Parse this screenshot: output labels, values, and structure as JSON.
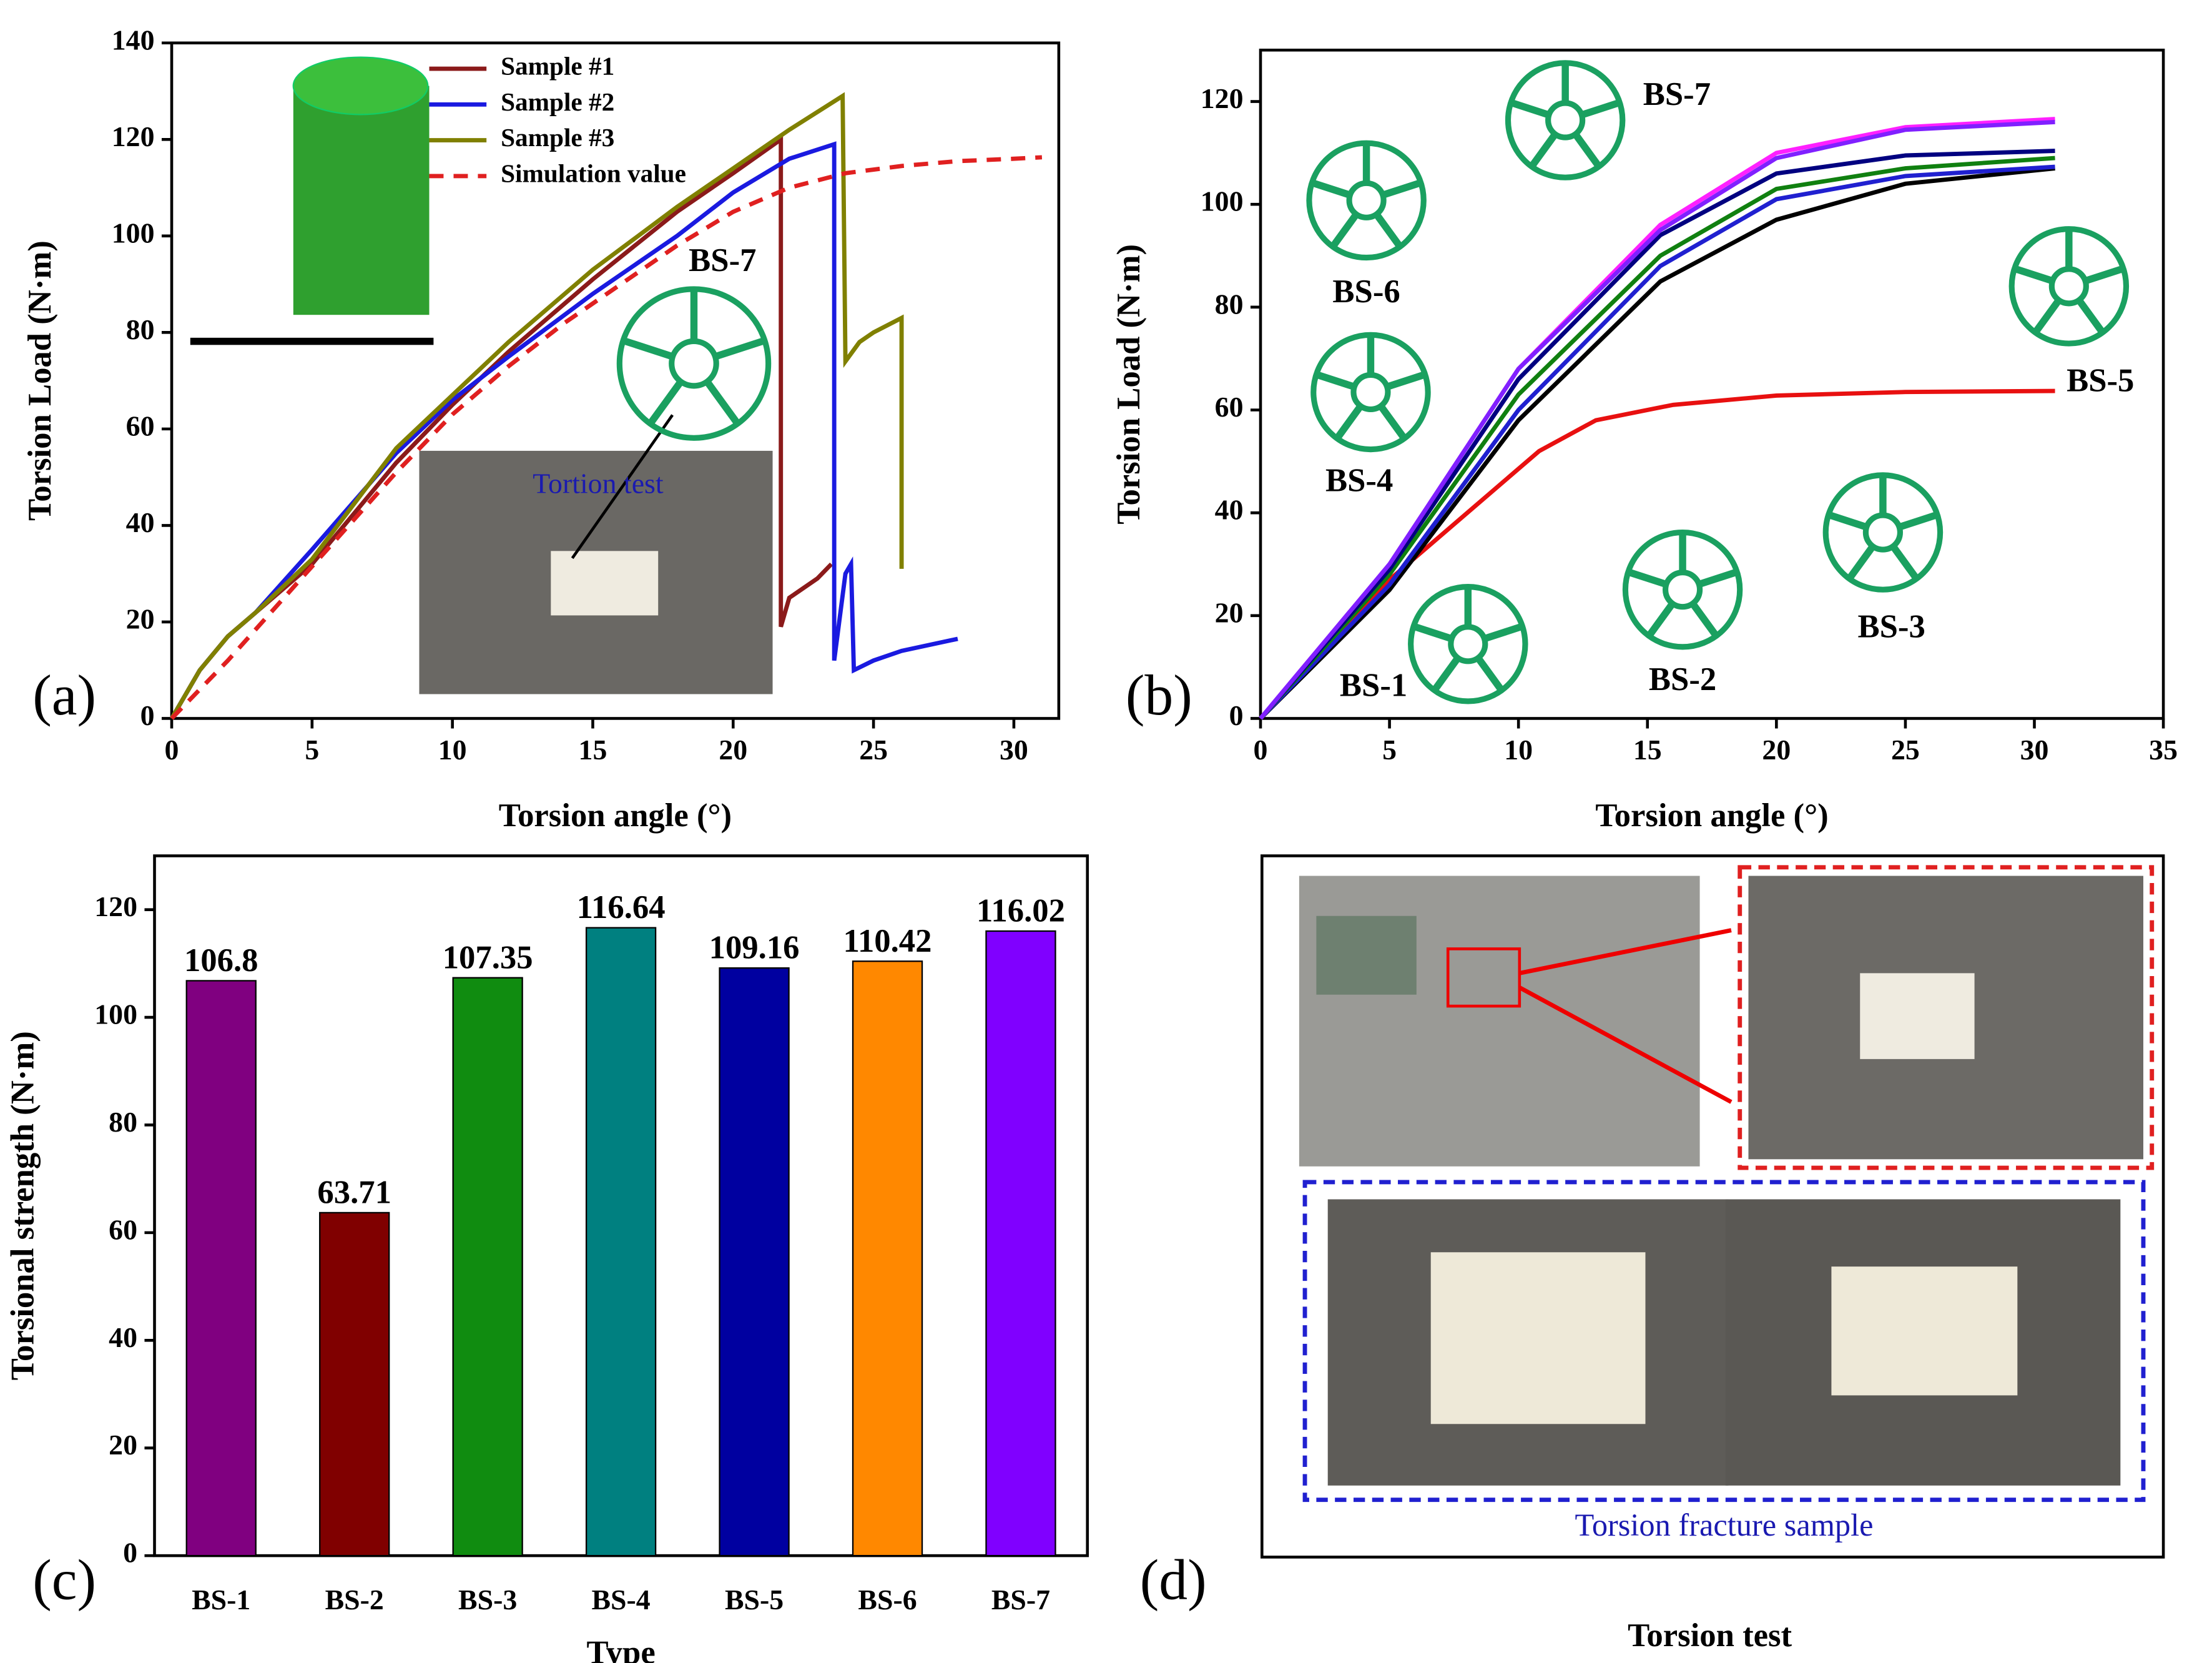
{
  "chart_data": [
    {
      "type": "line",
      "panel_label": "(a)",
      "x_label": "Torsion angle (°)",
      "y_label": "Torsion Load (N·m)",
      "xlim": [
        0,
        31.6
      ],
      "xticks": [
        0,
        5,
        10,
        15,
        20,
        25,
        30
      ],
      "ylim": [
        0,
        140
      ],
      "yticks": [
        0,
        20,
        40,
        60,
        80,
        100,
        120,
        140
      ],
      "annotations": [
        "BS-7",
        "Tortion test"
      ],
      "series": [
        {
          "name": "Sample #1",
          "color": "#8b1a1a",
          "dash": false,
          "x": [
            0,
            1,
            2,
            3,
            5,
            8,
            10,
            12,
            15,
            18,
            20,
            21.7,
            21.7,
            22,
            23,
            23.5
          ],
          "values": [
            0,
            10,
            17,
            22,
            32,
            53,
            65,
            76,
            91,
            105,
            113,
            120,
            19,
            25,
            29,
            32
          ]
        },
        {
          "name": "Sample #2",
          "color": "#1a1ae0",
          "dash": false,
          "x": [
            0,
            1,
            2,
            3,
            5,
            8,
            10,
            12,
            15,
            18,
            20,
            22,
            23.6,
            23.6,
            24,
            24.2,
            24.3,
            25,
            26,
            28
          ],
          "values": [
            0,
            10,
            17,
            22,
            35,
            55,
            66,
            75,
            88,
            100,
            109,
            116,
            119,
            12,
            30,
            32,
            10,
            12,
            14,
            16.5
          ]
        },
        {
          "name": "Sample #3",
          "color": "#808000",
          "dash": false,
          "x": [
            0,
            1,
            2,
            3,
            5,
            8,
            10,
            12,
            15,
            18,
            20,
            22,
            23.9,
            24,
            24.5,
            25,
            26,
            26
          ],
          "values": [
            0,
            10,
            17,
            22,
            33,
            56,
            67,
            78,
            93,
            106,
            114,
            122,
            129,
            74,
            78,
            80,
            83,
            31
          ]
        },
        {
          "name": "Simulation value",
          "color": "#e02020",
          "dash": true,
          "x": [
            0,
            2,
            4,
            6,
            8,
            10,
            12,
            14,
            16,
            18,
            20,
            22,
            24,
            26,
            28,
            30,
            31
          ],
          "values": [
            0,
            12,
            25,
            38,
            51,
            63,
            73,
            82,
            90,
            98,
            105,
            110,
            113,
            114.5,
            115.5,
            116,
            116.3
          ]
        }
      ]
    },
    {
      "type": "line",
      "panel_label": "(b)",
      "x_label": "Torsion angle (°)",
      "y_label": "Torsion Load (N·m)",
      "xlim": [
        0,
        35
      ],
      "xticks": [
        0,
        5,
        10,
        15,
        20,
        25,
        30,
        35
      ],
      "ylim": [
        0,
        130
      ],
      "yticks": [
        0,
        20,
        40,
        60,
        80,
        100,
        120
      ],
      "annotations": [
        "BS-7",
        "BS-6",
        "BS-5",
        "BS-4",
        "BS-1",
        "BS-2",
        "BS-3"
      ],
      "series": [
        {
          "color": "#e81010",
          "dash": false,
          "x": [
            0,
            5,
            10.8,
            13,
            16,
            20,
            25,
            30.8
          ],
          "values": [
            0,
            27,
            52,
            58,
            61,
            62.8,
            63.5,
            63.7
          ]
        },
        {
          "color": "#000000",
          "dash": false,
          "x": [
            0,
            5,
            10,
            15.5,
            20,
            25,
            30.8
          ],
          "values": [
            0,
            25,
            58,
            85,
            97,
            104,
            107
          ]
        },
        {
          "color": "#2020d0",
          "dash": false,
          "x": [
            0,
            5,
            10,
            15.5,
            20,
            25,
            30.8
          ],
          "values": [
            0,
            26,
            60,
            88,
            101,
            105.5,
            107.3
          ]
        },
        {
          "color": "#108010",
          "dash": false,
          "x": [
            0,
            5,
            10,
            15.5,
            20,
            25,
            30.8
          ],
          "values": [
            0,
            28,
            63,
            90,
            103,
            107,
            109
          ]
        },
        {
          "color": "#000080",
          "dash": false,
          "x": [
            0,
            5,
            10,
            15.5,
            20,
            25,
            30.8
          ],
          "values": [
            0,
            29,
            66,
            94,
            106,
            109.5,
            110.4
          ]
        },
        {
          "color": "#ff20ff",
          "dash": false,
          "x": [
            0,
            5,
            10,
            15.5,
            20,
            25,
            30.8
          ],
          "values": [
            0,
            30,
            68,
            96,
            110,
            115,
            116.6
          ]
        },
        {
          "color": "#8020ff",
          "dash": false,
          "x": [
            0,
            5,
            10,
            15.5,
            20,
            25,
            30.8
          ],
          "values": [
            0,
            30,
            68,
            95,
            109,
            114.5,
            116
          ]
        }
      ]
    },
    {
      "type": "bar",
      "panel_label": "(c)",
      "x_label": "Type",
      "y_label": "Torsional strength (N·m)",
      "categories": [
        "BS-1",
        "BS-2",
        "BS-3",
        "BS-4",
        "BS-5",
        "BS-6",
        "BS-7"
      ],
      "values": [
        106.8,
        63.71,
        107.35,
        116.64,
        109.16,
        110.42,
        116.02
      ],
      "colors": [
        "#800080",
        "#800000",
        "#108c10",
        "#008080",
        "#0000a0",
        "#ff8800",
        "#8000ff"
      ],
      "ylim": [
        0,
        130
      ],
      "yticks": [
        0,
        20,
        40,
        60,
        80,
        100,
        120
      ]
    }
  ],
  "panel_d": {
    "label": "(d)",
    "inner_label": "Torsion fracture sample",
    "caption": "Torsion  test"
  }
}
